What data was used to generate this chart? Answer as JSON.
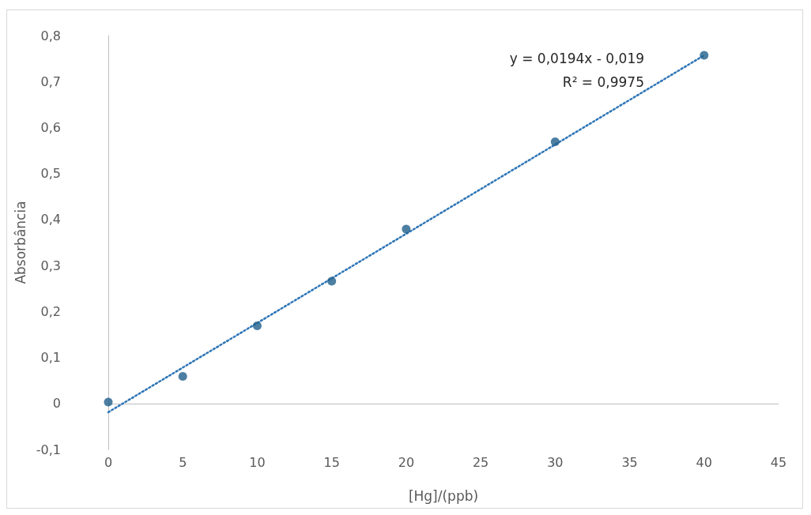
{
  "chart_data": {
    "type": "scatter",
    "xlabel": "[Hg]/(ppb)",
    "ylabel": "Absorbância",
    "x": [
      0,
      5,
      10,
      15,
      20,
      30,
      40
    ],
    "series": [
      {
        "color": "#1f5f8b",
        "marker": "circle",
        "values": [
          0.003,
          0.059,
          0.169,
          0.266,
          0.379,
          0.569,
          0.757
        ]
      },
      {
        "type": "line",
        "color": "#2e75b6",
        "marker": "none",
        "line_style": "dotted",
        "x": [
          0,
          40
        ],
        "values": [
          -0.019,
          0.757
        ]
      }
    ],
    "xlim": [
      0,
      45
    ],
    "xticks": [
      0,
      5,
      10,
      15,
      20,
      25,
      30,
      35,
      40,
      45
    ],
    "ylim": [
      -0.1,
      0.8
    ],
    "yticks": [
      {
        "value": -0.1,
        "label": "-0,1"
      },
      {
        "value": 0,
        "label": "0"
      },
      {
        "value": 0.1,
        "label": "0,1"
      },
      {
        "value": 0.2,
        "label": "0,2"
      },
      {
        "value": 0.3,
        "label": "0,3"
      },
      {
        "value": 0.4,
        "label": "0,4"
      },
      {
        "value": 0.5,
        "label": "0,5"
      },
      {
        "value": 0.6,
        "label": "0,6"
      },
      {
        "value": 0.7,
        "label": "0,7"
      },
      {
        "value": 0.8,
        "label": "0,8"
      }
    ],
    "annotations": [
      "y = 0,0194x - 0,019",
      "R² = 0,9975"
    ]
  }
}
